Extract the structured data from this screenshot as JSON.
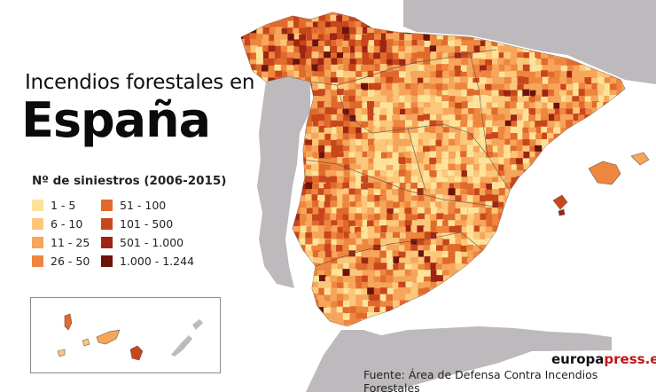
{
  "title": {
    "line1": "Incendios forestales en",
    "line2": "España"
  },
  "legend": {
    "title": "Nº de siniestros (2006-2015)",
    "items": [
      {
        "label": "1 - 5",
        "color": "#fde39a"
      },
      {
        "label": "6 - 10",
        "color": "#fbc77a"
      },
      {
        "label": "11 - 25",
        "color": "#f6a55a"
      },
      {
        "label": "26 - 50",
        "color": "#ee863f"
      },
      {
        "label": "51 - 100",
        "color": "#e06a2c"
      },
      {
        "label": "101 - 500",
        "color": "#c8461c"
      },
      {
        "label": "501 - 1.000",
        "color": "#9e2414"
      },
      {
        "label": "1.000 - 1.244",
        "color": "#6b130d"
      }
    ]
  },
  "brand": {
    "part1": "europa",
    "part2": "press.es"
  },
  "source": "Fuente: Área de Defensa Contra Incendios Forestales",
  "colors": {
    "land_neighbor": "#bdb9bc",
    "sea": "#ffffff",
    "border": "#555555"
  }
}
